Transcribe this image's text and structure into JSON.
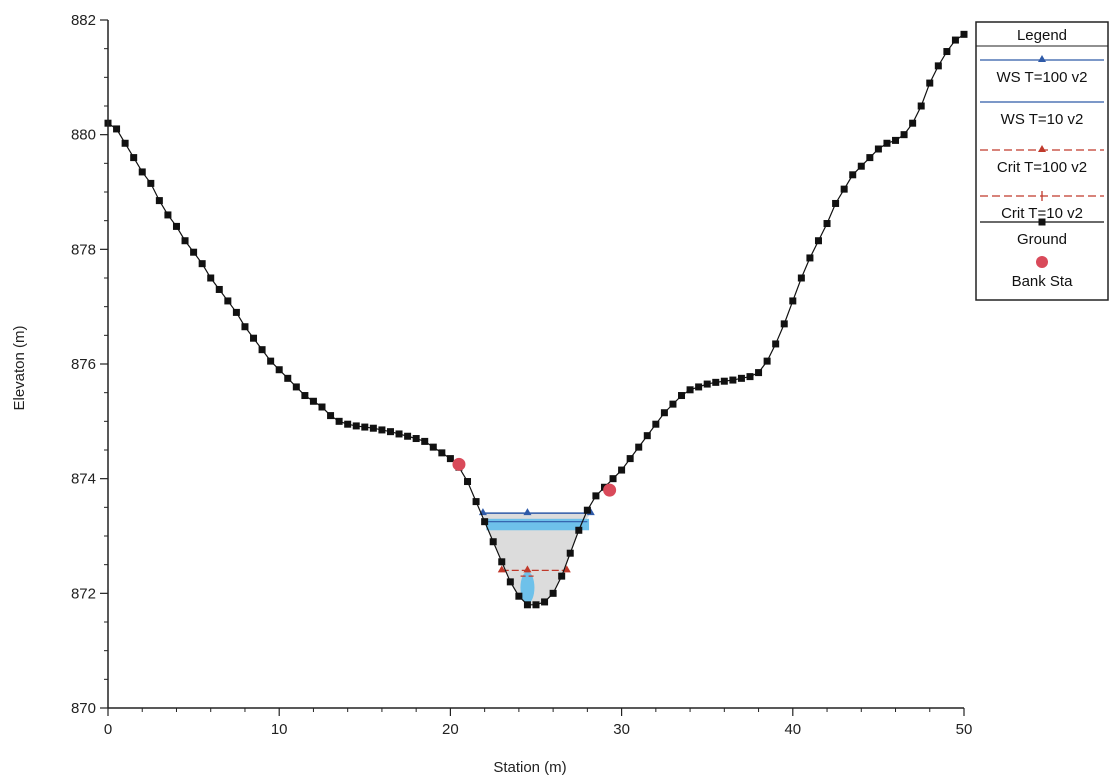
{
  "chart_data": {
    "type": "line",
    "xlabel": "Station (m)",
    "ylabel": "Elevaton (m)",
    "xlim": [
      0,
      50
    ],
    "ylim": [
      870,
      882
    ],
    "x_ticks": [
      "0",
      "10",
      "20",
      "30",
      "40",
      "50"
    ],
    "y_ticks": [
      "870",
      "872",
      "874",
      "876",
      "878",
      "880",
      "882"
    ],
    "grid": false,
    "legend_position": "top-right",
    "legend_title": "Legend",
    "series": [
      {
        "name": "WS T=100 v2",
        "color": "#2f5aa8",
        "marker": "triangle",
        "x": [
          21.9,
          24.5,
          28.2
        ],
        "y": [
          873.4,
          873.4,
          873.4
        ]
      },
      {
        "name": "WS T=10 v2",
        "color": "#2f5aa8",
        "marker": "none",
        "x": [
          22.2,
          28.0
        ],
        "y": [
          873.25,
          873.25
        ]
      },
      {
        "name": "Crit T=100 v2",
        "color": "#c0392b",
        "marker": "triangle",
        "x": [
          23.0,
          24.5,
          26.8
        ],
        "y": [
          872.4,
          872.4,
          872.4
        ]
      },
      {
        "name": "Crit T=10 v2",
        "color": "#c0392b",
        "marker": "plus",
        "x": [
          24.1,
          24.9
        ],
        "y": [
          872.3,
          872.3
        ]
      },
      {
        "name": "Ground",
        "color": "#111111",
        "marker": "square",
        "x": [
          0,
          0.5,
          1,
          1.5,
          2,
          2.5,
          3,
          3.5,
          4,
          4.5,
          5,
          5.5,
          6,
          6.5,
          7,
          7.5,
          8,
          8.5,
          9,
          9.5,
          10,
          10.5,
          11,
          11.5,
          12,
          12.5,
          13,
          13.5,
          14,
          14.5,
          15,
          15.5,
          16,
          16.5,
          17,
          17.5,
          18,
          18.5,
          19,
          19.5,
          20,
          20.5,
          21,
          21.5,
          22,
          22.5,
          23,
          23.5,
          24,
          24.5,
          25,
          25.5,
          26,
          26.5,
          27,
          27.5,
          28,
          28.5,
          29,
          29.5,
          30,
          30.5,
          31,
          31.5,
          32,
          32.5,
          33,
          33.5,
          34,
          34.5,
          35,
          35.5,
          36,
          36.5,
          37,
          37.5,
          38,
          38.5,
          39,
          39.5,
          40,
          40.5,
          41,
          41.5,
          42,
          42.5,
          43,
          43.5,
          44,
          44.5,
          45,
          45.5,
          46,
          46.5,
          47,
          47.5,
          48,
          48.5,
          49,
          49.5,
          50
        ],
        "y": [
          880.2,
          880.1,
          879.85,
          879.6,
          879.35,
          879.15,
          878.85,
          878.6,
          878.4,
          878.15,
          877.95,
          877.75,
          877.5,
          877.3,
          877.1,
          876.9,
          876.65,
          876.45,
          876.25,
          876.05,
          875.9,
          875.75,
          875.6,
          875.45,
          875.35,
          875.25,
          875.1,
          875.0,
          874.95,
          874.92,
          874.9,
          874.88,
          874.85,
          874.82,
          874.78,
          874.74,
          874.7,
          874.65,
          874.55,
          874.45,
          874.35,
          874.2,
          873.95,
          873.6,
          873.25,
          872.9,
          872.55,
          872.2,
          871.95,
          871.8,
          871.8,
          871.85,
          872.0,
          872.3,
          872.7,
          873.1,
          873.45,
          873.7,
          873.85,
          874.0,
          874.15,
          874.35,
          874.55,
          874.75,
          874.95,
          875.15,
          875.3,
          875.45,
          875.55,
          875.6,
          875.65,
          875.68,
          875.7,
          875.72,
          875.75,
          875.78,
          875.85,
          876.05,
          876.35,
          876.7,
          877.1,
          877.5,
          877.85,
          878.15,
          878.45,
          878.8,
          879.05,
          879.3,
          879.45,
          879.6,
          879.75,
          879.85,
          879.9,
          880.0,
          880.2,
          880.5,
          880.9,
          881.2,
          881.45,
          881.65,
          881.75
        ]
      },
      {
        "name": "Bank Sta",
        "color": "#d94a5a",
        "marker": "circle",
        "x": [
          20.5,
          29.3
        ],
        "y": [
          874.25,
          873.8
        ]
      }
    ]
  }
}
